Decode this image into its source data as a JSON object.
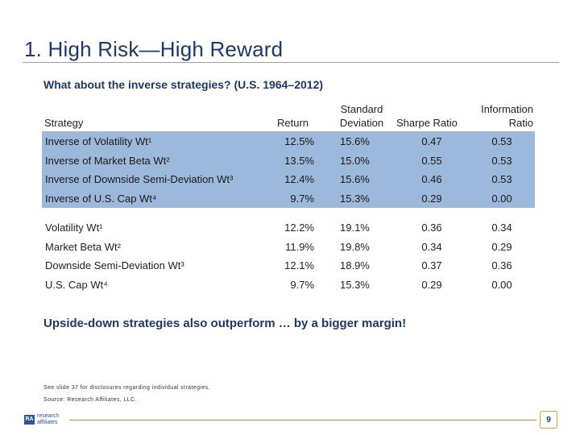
{
  "slide": {
    "title": "1. High Risk—High Reward",
    "subtitle": "What about the inverse strategies? (U.S. 1964–2012)",
    "callout": "Upside-down strategies also outperform … by a bigger margin!",
    "notes": [
      "See slide 37 for disclosures regarding individual strategies.",
      "Source: Research Affiliates, LLC."
    ],
    "page_number": "9",
    "logo": {
      "line1": "research",
      "line2": "affiliates"
    }
  },
  "table": {
    "headers": {
      "strategy": "Strategy",
      "return": "Return",
      "std_line1": "Standard",
      "std_line2": "Deviation",
      "sharpe": "Sharpe Ratio",
      "info_line1": "Information",
      "info_line2": "Ratio"
    },
    "inverse_rows": [
      {
        "name": "Inverse of Volatility Wt¹",
        "return": "12.5%",
        "std": "15.6%",
        "sharpe": "0.47",
        "ir": "0.53"
      },
      {
        "name": "Inverse of Market Beta Wt²",
        "return": "13.5%",
        "std": "15.0%",
        "sharpe": "0.55",
        "ir": "0.53"
      },
      {
        "name": "Inverse of Downside Semi-Deviation Wt³",
        "return": "12.4%",
        "std": "15.6%",
        "sharpe": "0.46",
        "ir": "0.53"
      },
      {
        "name": "Inverse of U.S. Cap Wt⁴",
        "return": "9.7%",
        "std": "15.3%",
        "sharpe": "0.29",
        "ir": "0.00"
      }
    ],
    "regular_rows": [
      {
        "name": "Volatility Wt¹",
        "return": "12.2%",
        "std": "19.1%",
        "sharpe": "0.36",
        "ir": "0.34"
      },
      {
        "name": "Market Beta Wt²",
        "return": "11.9%",
        "std": "19.8%",
        "sharpe": "0.34",
        "ir": "0.29"
      },
      {
        "name": "Downside Semi-Deviation Wt³",
        "return": "12.1%",
        "std": "18.9%",
        "sharpe": "0.37",
        "ir": "0.36"
      },
      {
        "name": "U.S. Cap Wt⁴",
        "return": "9.7%",
        "std": "15.3%",
        "sharpe": "0.29",
        "ir": "0.00"
      }
    ],
    "band_color": "#9cb8da"
  }
}
